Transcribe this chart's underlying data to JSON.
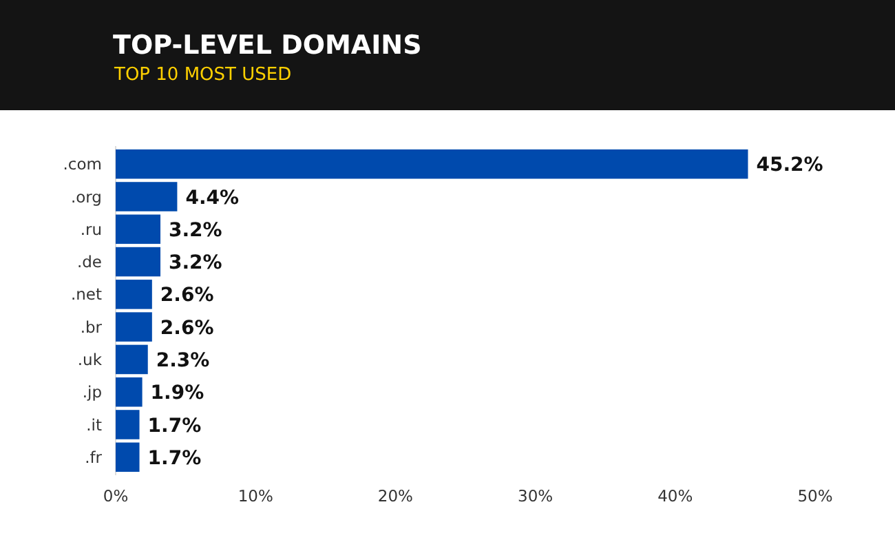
{
  "chart_data": {
    "type": "bar",
    "orientation": "horizontal",
    "title": "TOP-LEVEL DOMAINS",
    "subtitle": "TOP 10 MOST USED",
    "categories": [
      ".com",
      ".org",
      ".ru",
      ".de",
      ".net",
      ".br",
      ".uk",
      ".jp",
      ".it",
      ".fr"
    ],
    "values": [
      45.2,
      4.4,
      3.2,
      3.2,
      2.6,
      2.6,
      2.3,
      1.9,
      1.7,
      1.7
    ],
    "color": "#004aad",
    "value_labels": [
      "45.2%",
      "4.4%",
      "3.2%",
      "3.2%",
      "2.6%",
      "2.6%",
      "2.3%",
      "1.9%",
      "1.7%",
      "1.7%"
    ],
    "xlim": [
      0,
      50
    ],
    "xticks": [
      {
        "value": 0,
        "label": "0%"
      },
      {
        "value": 10,
        "label": "10%"
      },
      {
        "value": 20,
        "label": "20%"
      },
      {
        "value": 30,
        "label": "30%"
      },
      {
        "value": 40,
        "label": "40%"
      },
      {
        "value": 50,
        "label": "50%"
      }
    ]
  }
}
